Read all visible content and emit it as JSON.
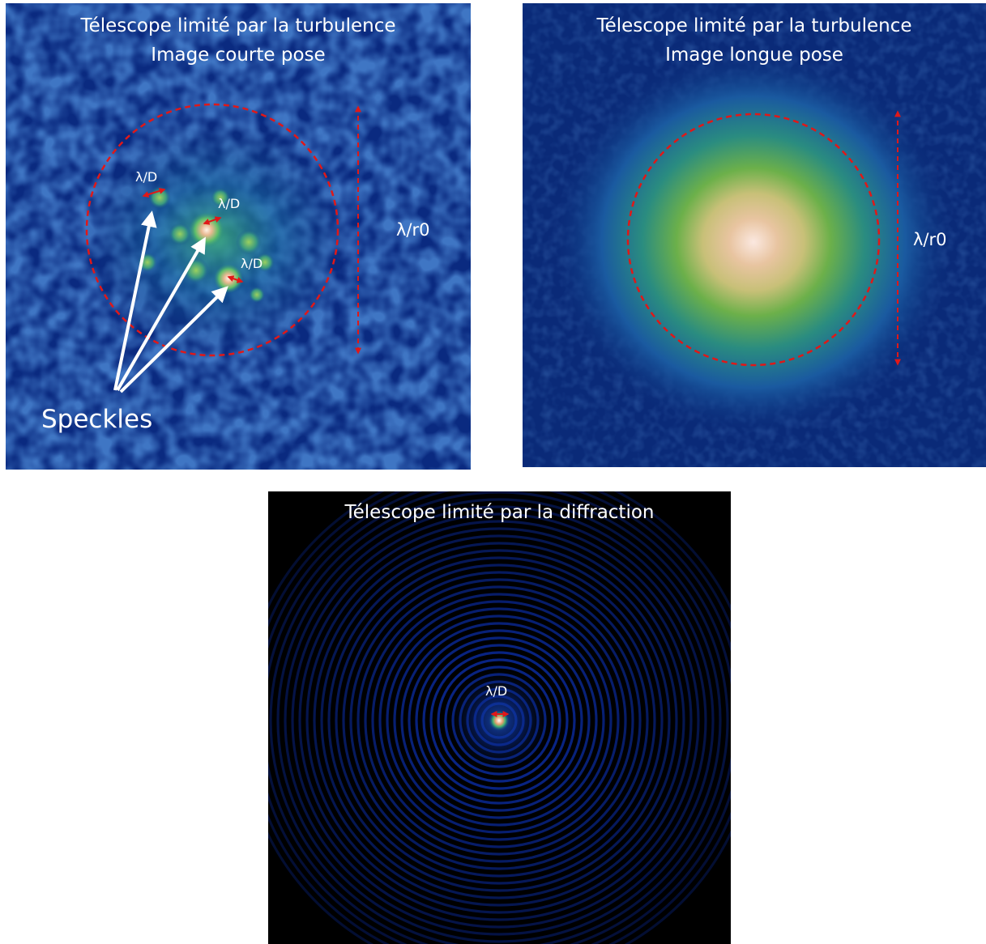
{
  "panels": {
    "short_exposure": {
      "title_line1": "Télescope limité par la turbulence",
      "title_line2": "Image courte pose",
      "label_lambda_d": "λ/D",
      "label_lambda_r0": "λ/r0",
      "label_speckles": "Speckles"
    },
    "long_exposure": {
      "title_line1": "Télescope limité par la turbulence",
      "title_line2": "Image longue pose",
      "label_lambda_r0": "λ/r0"
    },
    "diffraction": {
      "title_line1": "Télescope limité par la diffraction",
      "label_lambda_d": "λ/D"
    }
  },
  "colors": {
    "background_short": "#05206a",
    "background_long": "#0a2a78",
    "background_diffraction": "#000000",
    "annotation_dashed": "#e01818",
    "arrow": "#ffffff",
    "text": "#ffffff"
  }
}
